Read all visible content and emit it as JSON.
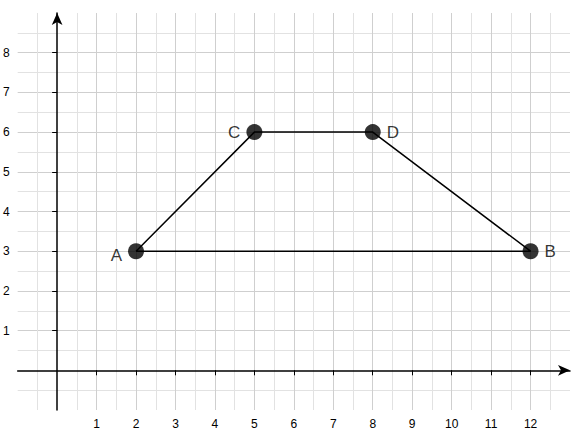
{
  "chart_data": {
    "type": "polygon",
    "points": [
      {
        "label": "A",
        "x": 2,
        "y": 3
      },
      {
        "label": "C",
        "x": 5,
        "y": 6
      },
      {
        "label": "D",
        "x": 8,
        "y": 6
      },
      {
        "label": "B",
        "x": 12,
        "y": 3
      }
    ],
    "color": "#000000",
    "marker": "circle",
    "xlim": [
      -1,
      13
    ],
    "xticks": [
      1,
      2,
      3,
      4,
      5,
      6,
      7,
      8,
      9,
      10,
      11,
      12
    ],
    "ylim": [
      -1,
      9
    ],
    "yticks": [
      1,
      2,
      3,
      4,
      5,
      6,
      7,
      8
    ],
    "grid": true
  }
}
